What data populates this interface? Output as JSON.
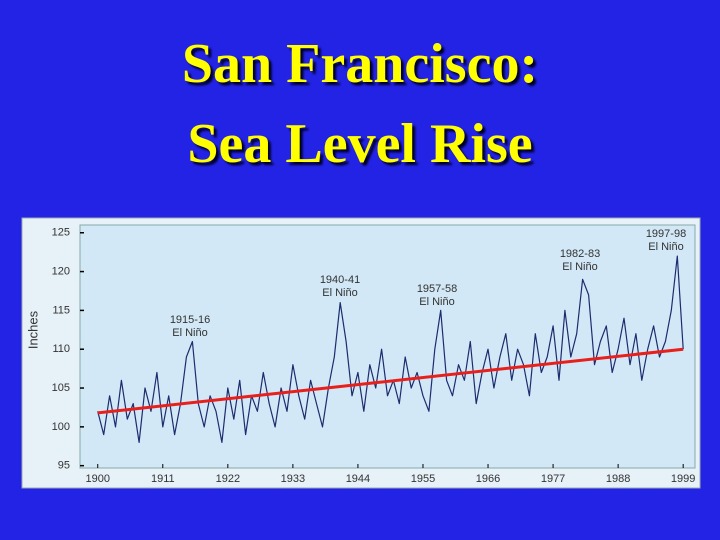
{
  "chart_data": {
    "type": "line",
    "title": [
      "San Francisco:",
      "Sea Level Rise"
    ],
    "ylabel": "Inches",
    "x": [
      1900,
      1901,
      1902,
      1903,
      1904,
      1905,
      1906,
      1907,
      1908,
      1909,
      1910,
      1911,
      1912,
      1913,
      1914,
      1915,
      1916,
      1917,
      1918,
      1919,
      1920,
      1921,
      1922,
      1923,
      1924,
      1925,
      1926,
      1927,
      1928,
      1929,
      1930,
      1931,
      1932,
      1933,
      1934,
      1935,
      1936,
      1937,
      1938,
      1939,
      1940,
      1941,
      1942,
      1943,
      1944,
      1945,
      1946,
      1947,
      1948,
      1949,
      1950,
      1951,
      1952,
      1953,
      1954,
      1955,
      1956,
      1957,
      1958,
      1959,
      1960,
      1961,
      1962,
      1963,
      1964,
      1965,
      1966,
      1967,
      1968,
      1969,
      1970,
      1971,
      1972,
      1973,
      1974,
      1975,
      1976,
      1977,
      1978,
      1979,
      1980,
      1981,
      1982,
      1983,
      1984,
      1985,
      1986,
      1987,
      1988,
      1989,
      1990,
      1991,
      1992,
      1993,
      1994,
      1995,
      1996,
      1997,
      1998,
      1999
    ],
    "series": [
      {
        "color": "#1c2c6e",
        "values": [
          102,
          99,
          104,
          100,
          106,
          101,
          103,
          98,
          105,
          102,
          107,
          100,
          104,
          99,
          103,
          109,
          111,
          103,
          100,
          104,
          102,
          98,
          105,
          101,
          106,
          99,
          104,
          102,
          107,
          103,
          100,
          105,
          102,
          108,
          104,
          101,
          106,
          103,
          100,
          105,
          109,
          116,
          111,
          104,
          107,
          102,
          108,
          105,
          110,
          104,
          106,
          103,
          109,
          105,
          107,
          104,
          102,
          110,
          115,
          106,
          104,
          108,
          106,
          111,
          103,
          107,
          110,
          105,
          109,
          112,
          106,
          110,
          108,
          104,
          112,
          107,
          109,
          113,
          106,
          115,
          109,
          112,
          119,
          117,
          108,
          111,
          113,
          107,
          110,
          114,
          108,
          112,
          106,
          110,
          113,
          109,
          111,
          115,
          122,
          110
        ]
      },
      {
        "color": "#e8201c",
        "x": [
          1900,
          1999
        ],
        "values": [
          101.8,
          110
        ]
      }
    ],
    "annotations": [
      [
        "1915-16",
        "El Niño"
      ],
      [
        "1940-41",
        "El Niño"
      ],
      [
        "1957-58",
        "El Niño"
      ],
      [
        "1982-83",
        "El Niño"
      ],
      [
        "1997-98",
        "El Niño"
      ]
    ],
    "xlim": [
      1897,
      2001
    ],
    "ylim": [
      94.7,
      126
    ],
    "xticks": [
      1900,
      1911,
      1922,
      1933,
      1944,
      1955,
      1966,
      1977,
      1988,
      1999
    ],
    "yticks": [
      95,
      100,
      105,
      110,
      115,
      120,
      125
    ]
  }
}
